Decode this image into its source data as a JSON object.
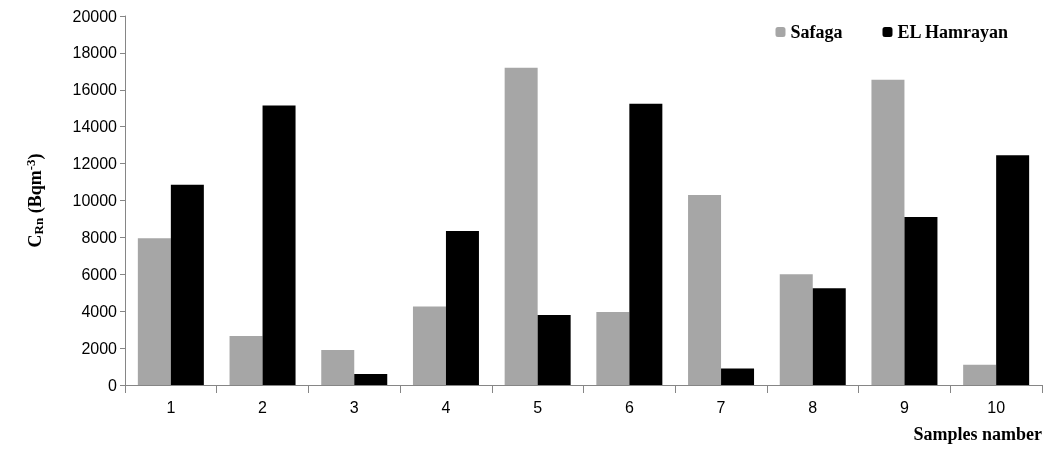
{
  "chart_data": {
    "type": "bar",
    "xlabel": "Samples namber",
    "ylabel": "C$_{Rn}$ (Bqm$^{-3}$)",
    "categories": [
      "1",
      "2",
      "3",
      "4",
      "5",
      "6",
      "7",
      "8",
      "9",
      "10"
    ],
    "series": [
      {
        "name": "Safaga",
        "color": "#a6a6a6",
        "values": [
          7950,
          2650,
          1900,
          4250,
          17200,
          3950,
          10300,
          6000,
          16550,
          1100
        ]
      },
      {
        "name": "EL Hamrayan",
        "color": "#000000",
        "values": [
          10850,
          15150,
          600,
          8350,
          3800,
          15250,
          900,
          5250,
          9100,
          12450
        ]
      }
    ],
    "ylim": [
      0,
      20000
    ],
    "yticks": [
      0,
      2000,
      4000,
      6000,
      8000,
      10000,
      12000,
      14000,
      16000,
      18000,
      20000
    ],
    "legend": "top right"
  }
}
